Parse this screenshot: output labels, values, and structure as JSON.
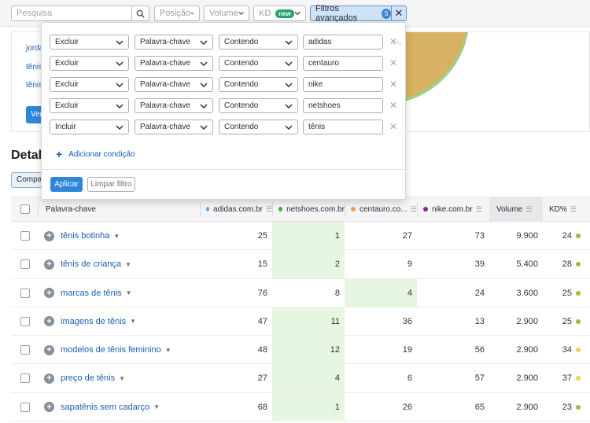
{
  "topbar": {
    "search_placeholder": "Pesquisa",
    "position_label": "Posição",
    "volume_label": "Volume",
    "kd_label": "KD",
    "kd_badge": "new",
    "advanced_label": "Filtros avançados",
    "advanced_count": "5"
  },
  "overview": {
    "links": [
      "jordan",
      "tênis",
      "tênis"
    ],
    "button_label": "Ver"
  },
  "details": {
    "title": "Detal",
    "compare_label": "Compar"
  },
  "advanced_filter": {
    "rows": [
      {
        "mode": "Excluir",
        "field": "Palavra-chave",
        "operator": "Contendo",
        "value": "adidas"
      },
      {
        "mode": "Excluir",
        "field": "Palavra-chave",
        "operator": "Contendo",
        "value": "centauro"
      },
      {
        "mode": "Excluir",
        "field": "Palavra-chave",
        "operator": "Contendo",
        "value": "nike"
      },
      {
        "mode": "Excluir",
        "field": "Palavra-chave",
        "operator": "Contendo",
        "value": "netshoes"
      },
      {
        "mode": "Incluir",
        "field": "Palavra-chave",
        "operator": "Contendo",
        "value": "tênis"
      }
    ],
    "add_condition_label": "Adicionar condição",
    "apply_label": "Aplicar",
    "clear_label": "Limpar filtro"
  },
  "table": {
    "headers": {
      "keyword": "Palavra-chave",
      "domain1": "adidas.com.br",
      "domain2": "netshoes.com.br",
      "domain3": "centauro.co...",
      "domain4": "nike.com.br",
      "volume": "Volume",
      "kd": "KD%"
    },
    "domain_colors": [
      "#5aa6e8",
      "#34b34a",
      "#f0a04b",
      "#8a2c8f"
    ],
    "rows": [
      {
        "keyword": "tênis botinha",
        "d1": "25",
        "d2": "1",
        "d3": "27",
        "d4": "73",
        "volume": "9.900",
        "kd": "24",
        "kd_color": "#8fc23f",
        "hl": 2
      },
      {
        "keyword": "tênis de criança",
        "d1": "15",
        "d2": "2",
        "d3": "9",
        "d4": "39",
        "volume": "5.400",
        "kd": "28",
        "kd_color": "#8fc23f",
        "hl": 2
      },
      {
        "keyword": "marcas de tênis",
        "d1": "76",
        "d2": "8",
        "d3": "4",
        "d4": "24",
        "volume": "3.600",
        "kd": "25",
        "kd_color": "#8fc23f",
        "hl": 3
      },
      {
        "keyword": "imagens de tênis",
        "d1": "47",
        "d2": "11",
        "d3": "36",
        "d4": "13",
        "volume": "2.900",
        "kd": "25",
        "kd_color": "#8fc23f",
        "hl": 2
      },
      {
        "keyword": "modelos de tênis feminino",
        "d1": "48",
        "d2": "12",
        "d3": "19",
        "d4": "56",
        "volume": "2.900",
        "kd": "34",
        "kd_color": "#e8d44d",
        "hl": 2
      },
      {
        "keyword": "preço de tênis",
        "d1": "27",
        "d2": "4",
        "d3": "6",
        "d4": "57",
        "volume": "2.900",
        "kd": "37",
        "kd_color": "#e8d44d",
        "hl": 2
      },
      {
        "keyword": "sapatênis sem cadarço",
        "d1": "68",
        "d2": "1",
        "d3": "26",
        "d4": "65",
        "volume": "2.900",
        "kd": "23",
        "kd_color": "#8fc23f",
        "hl": 2
      }
    ]
  }
}
